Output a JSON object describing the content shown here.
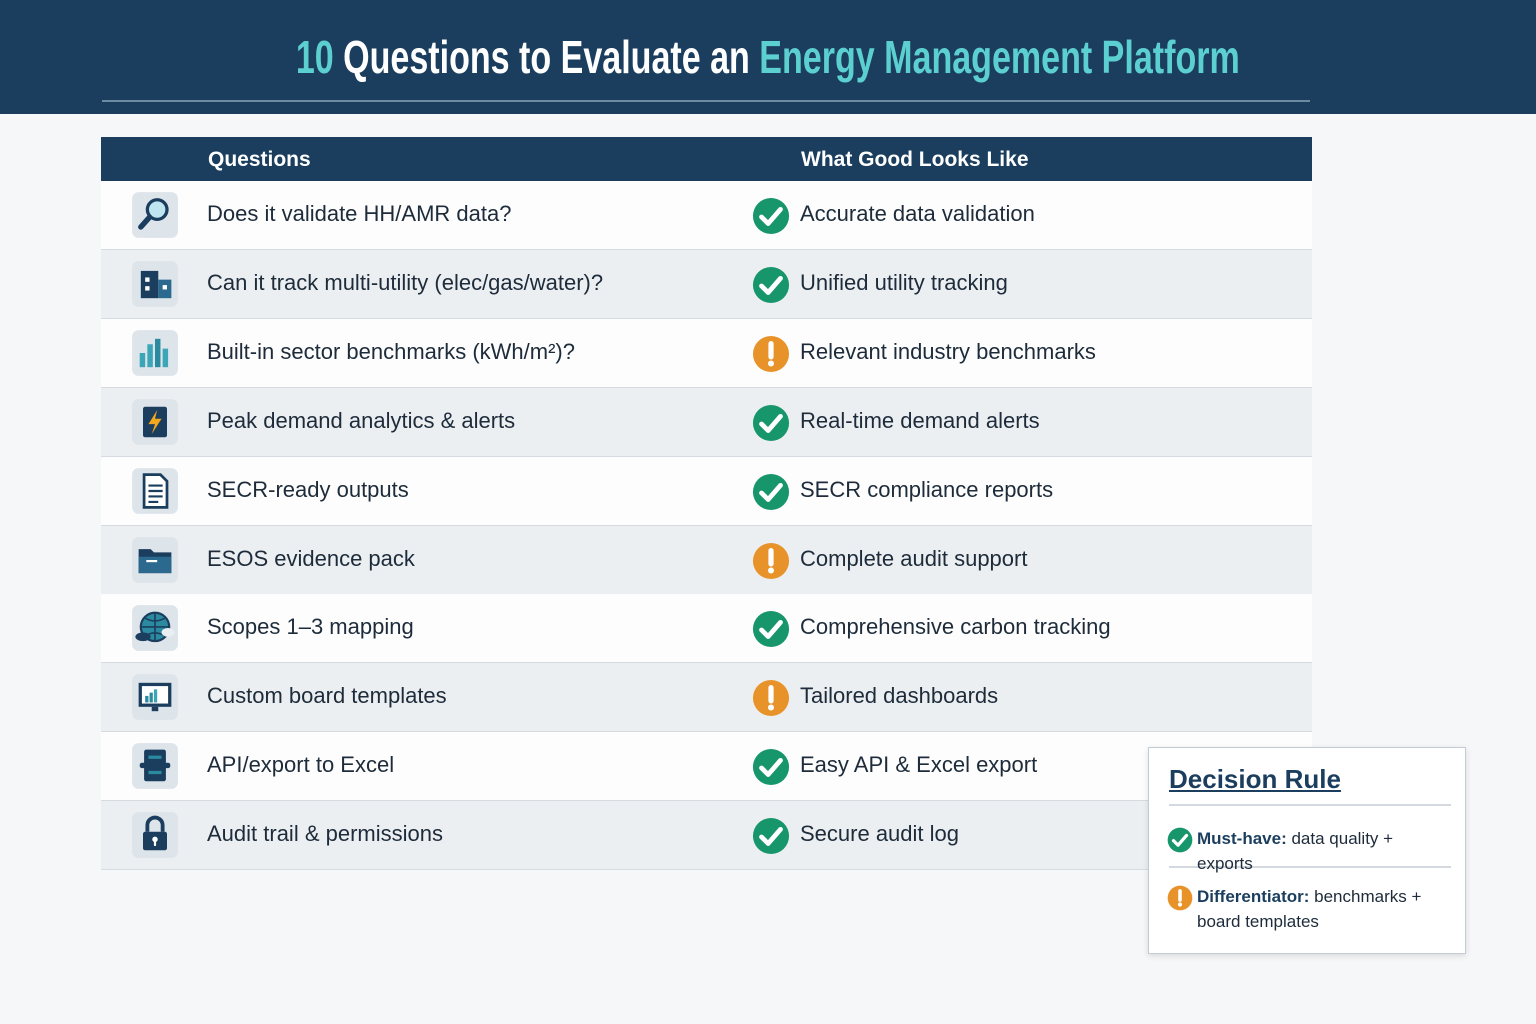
{
  "header": {
    "title": {
      "number": "10",
      "middle": "Questions to Evaluate an",
      "highlight": "Energy Management Platform"
    }
  },
  "table": {
    "columns": [
      "Questions",
      "What Good Looks Like"
    ],
    "rows": [
      {
        "question": "Does it validate HH/AMR data?",
        "answer": "Accurate data validation",
        "status": "check"
      },
      {
        "question": "Can it track multi-utility (elec/gas/water)?",
        "answer": "Unified utility tracking",
        "status": "check"
      },
      {
        "question": "Built-in sector benchmarks (kWh/m²)?",
        "answer": "Relevant industry benchmarks",
        "status": "warn"
      },
      {
        "question": "Peak demand analytics & alerts",
        "answer": "Real-time demand alerts",
        "status": "check"
      },
      {
        "question": "SECR-ready outputs",
        "answer": "SECR compliance reports",
        "status": "check"
      },
      {
        "question": "ESOS evidence pack",
        "answer": "Complete audit support",
        "status": "warn"
      },
      {
        "question": "Scopes 1–3 mapping",
        "answer": "Comprehensive carbon tracking",
        "status": "check"
      },
      {
        "question": "Custom board templates",
        "answer": "Tailored dashboards",
        "status": "warn"
      },
      {
        "question": "API/export to Excel",
        "answer": "Easy API & Excel export",
        "status": "check"
      },
      {
        "question": "Audit trail & permissions",
        "answer": "Secure audit log",
        "status": "check"
      }
    ]
  },
  "decision_rule": {
    "title": "Decision Rule",
    "items": [
      {
        "label": "Must-have:",
        "text": "data quality + exports",
        "status": "check"
      },
      {
        "label": "Differentiator:",
        "text": "benchmarks + board templates",
        "status": "warn"
      }
    ]
  }
}
